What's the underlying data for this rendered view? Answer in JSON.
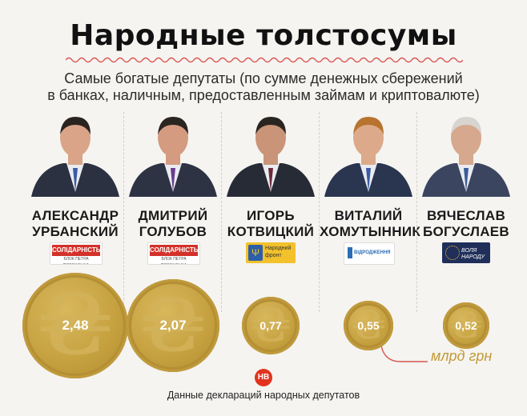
{
  "title": "Народные толстосумы",
  "subtitle_line1": "Самые богатые депутаты (по сумме денежных сбережений",
  "subtitle_line2": "в банках, наличным, предоставленным займам и криптовалюте)",
  "unit_label": "млрд грн",
  "source": "Данные деклараций народных депутатов",
  "logo_text": "НВ",
  "colors": {
    "gold": "#c6a140",
    "accent_red": "#e2331f",
    "unit": "#c39a35"
  },
  "deputies": [
    {
      "first": "АЛЕКСАНДР",
      "last": "УРБАНСКИЙ",
      "value": "2,48",
      "amount": 2.48,
      "party": {
        "name": "СОЛІДАРНІСТЬ",
        "sub": "БЛОК ПЕТРА ПОРОШЕНКА",
        "color": "#d3312a"
      }
    },
    {
      "first": "ДМИТРИЙ",
      "last": "ГОЛУБОВ",
      "value": "2,07",
      "amount": 2.07,
      "party": {
        "name": "СОЛІДАРНІСТЬ",
        "sub": "БЛОК ПЕТРА ПОРОШЕНКА",
        "color": "#d3312a"
      }
    },
    {
      "first": "ИГОРЬ",
      "last": "КОТВИЦКИЙ",
      "value": "0,77",
      "amount": 0.77,
      "party": {
        "name": "Народний фронт",
        "sub": "",
        "color": "#f2c12c"
      }
    },
    {
      "first": "ВИТАЛИЙ",
      "last": "ХОМУТЫННИК",
      "value": "0,55",
      "amount": 0.55,
      "party": {
        "name": "ВІДРОДЖЕННЯ",
        "sub": "",
        "color": "#2c6db5"
      }
    },
    {
      "first": "ВЯЧЕСЛАВ",
      "last": "БОГУСЛАЕВ",
      "value": "0,52",
      "amount": 0.52,
      "party": {
        "name": "ВОЛЯ НАРОДУ",
        "sub": "",
        "color": "#1f2f5a"
      }
    }
  ]
}
